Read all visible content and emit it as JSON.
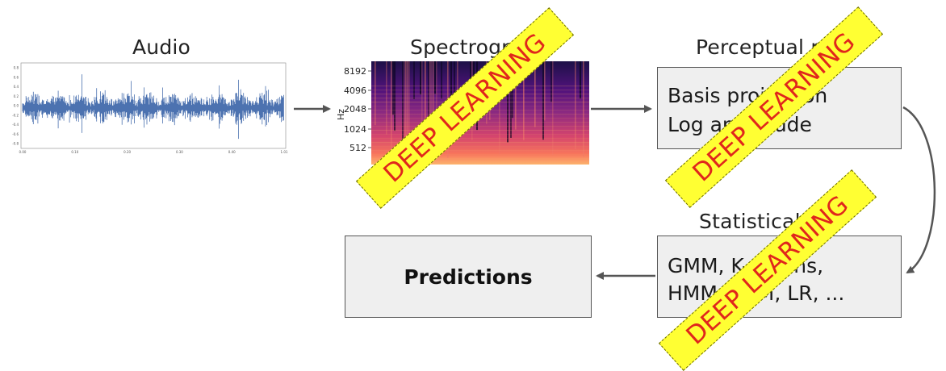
{
  "stages": {
    "audio": {
      "label": "Audio"
    },
    "spectrogram": {
      "label": "Spectrogram",
      "y_axis_label": "Hz",
      "y_ticks": [
        "8192",
        "4096",
        "2048",
        "1024",
        "512"
      ]
    },
    "perceptual": {
      "label": "Perceptual mo",
      "lines": [
        "Basis projection",
        "Log amplitude"
      ]
    },
    "statistical": {
      "label": "Statistical mo",
      "lines": [
        "GMM, K-means,",
        "HMM, SVM, LR, ..."
      ]
    },
    "predictions": {
      "label": "Predictions"
    }
  },
  "waveform": {
    "y_ticks": [
      "0.8",
      "0.6",
      "0.4",
      "0.2",
      "0.0",
      "-0.2",
      "-0.4",
      "-0.6",
      "-0.8"
    ],
    "x_ticks": [
      "0.00",
      "0.10",
      "0.20",
      "0.30",
      "0.40",
      "1.01"
    ],
    "color": "#4c72b0"
  },
  "overlay": {
    "text": "DEEP LEARNING",
    "fill_color": "#ffff33",
    "text_color": "#e0261c"
  },
  "colors": {
    "box_fill": "#efefef",
    "box_border": "#555555",
    "arrow": "#555555"
  }
}
